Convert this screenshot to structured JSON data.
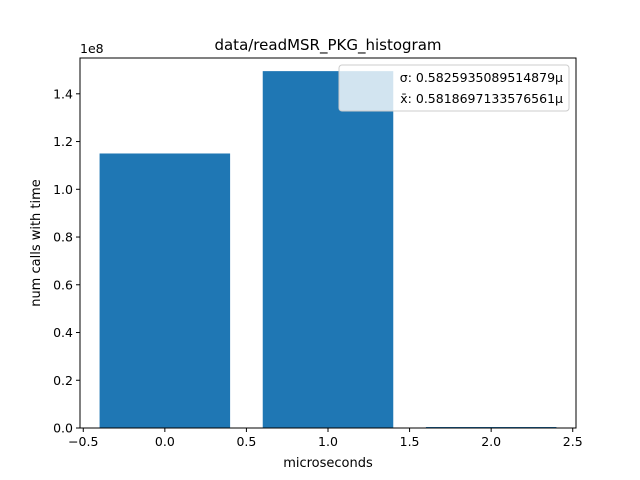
{
  "chart_data": {
    "type": "bar",
    "title": "data/readMSR_PKG_histogram",
    "xlabel": "microseconds",
    "ylabel": "num calls with time",
    "y_scale_label": "1e8",
    "x": [
      0,
      1,
      2
    ],
    "values": [
      115000000,
      149500000,
      300000
    ],
    "bar_width": 0.8,
    "bar_color": "#1f77b4",
    "xlim": [
      -0.52,
      2.52
    ],
    "ylim": [
      0,
      155000000
    ],
    "x_ticks": [
      -0.5,
      0.0,
      0.5,
      1.0,
      1.5,
      2.0,
      2.5
    ],
    "x_tick_labels": [
      "−0.5",
      "0.0",
      "0.5",
      "1.0",
      "1.5",
      "2.0",
      "2.5"
    ],
    "y_ticks": [
      0,
      20000000,
      40000000,
      60000000,
      80000000,
      100000000,
      120000000,
      140000000
    ],
    "y_tick_labels": [
      "0.0",
      "0.2",
      "0.4",
      "0.6",
      "0.8",
      "1.0",
      "1.2",
      "1.4"
    ],
    "legend": {
      "placement": "top-right",
      "entries": [
        "σ: 0.5825935089514879μ",
        "x̄: 0.5818697133576561μ"
      ]
    }
  }
}
